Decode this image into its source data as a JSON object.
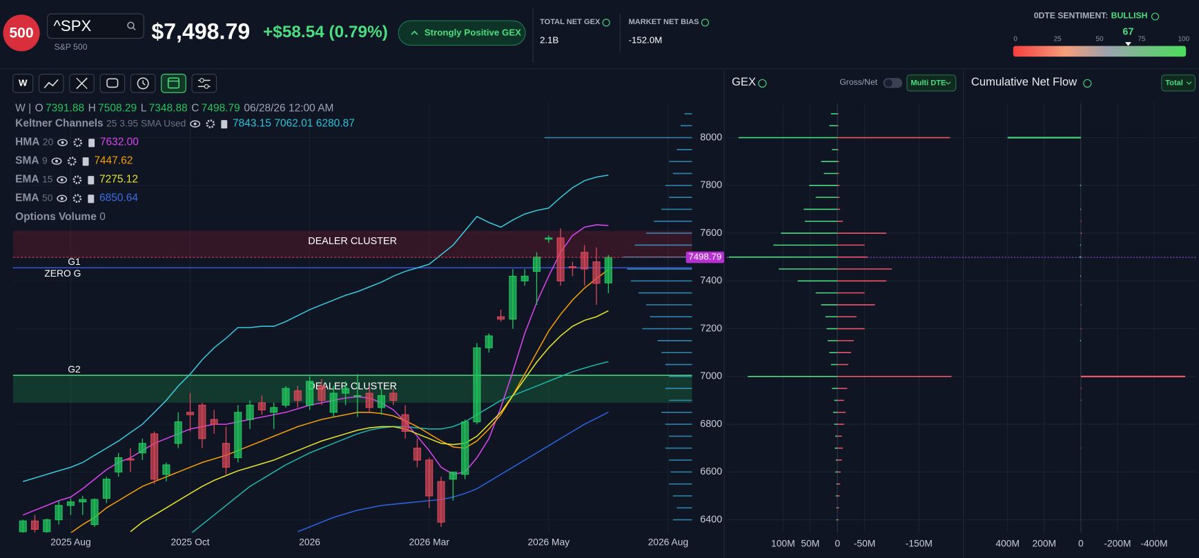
{
  "header": {
    "logo": "500",
    "ticker": "^SPX",
    "name": "S&P 500",
    "price": "$7,498.79",
    "change": "+$58.54 (0.79%)",
    "badge": "Strongly Positive GEX",
    "stats": [
      {
        "label": "TOTAL NET GEX",
        "value": "2.1B"
      },
      {
        "label": "MARKET NET BIAS",
        "value": "-152.0M"
      }
    ],
    "sentiment": {
      "label": "0DTE SENTIMENT:",
      "status": "BULLISH",
      "value": 67,
      "ticks": [
        0,
        25,
        50,
        75,
        100
      ]
    }
  },
  "toolbar": {
    "timeframe": "W"
  },
  "chart": {
    "type": "candlestick",
    "ohlc_prefix": "W |",
    "ohlc_labels": [
      "O",
      "H",
      "L",
      "C"
    ],
    "date": "06/28/26 12:00 AM",
    "indicators": [
      {
        "name": "Keltner Channels",
        "params": "25 3.95 SMA Used",
        "value_labels": [
          "7843.15",
          "7062.01",
          "6280.87"
        ],
        "color": "#2bc4d8"
      },
      {
        "name": "HMA",
        "params": "20",
        "value_labels": [
          "7632.00"
        ],
        "color": "#d946ef"
      },
      {
        "name": "SMA",
        "params": "9",
        "value_labels": [
          "7447.62"
        ],
        "color": "#f59e0b"
      },
      {
        "name": "EMA",
        "params": "15",
        "value_labels": [
          "7275.12"
        ],
        "color": "#e6e62e"
      },
      {
        "name": "EMA",
        "params": "50",
        "value_labels": [
          "6850.64"
        ],
        "color": "#3b6fe6"
      }
    ],
    "options_volume": {
      "name": "Options Volume",
      "value": 0
    },
    "candles": {
      "open": [
        6350,
        6395,
        6350,
        6400,
        6460,
        6475,
        6380,
        6490,
        6600,
        6655,
        6680,
        6760,
        6590,
        6720,
        6850,
        6880,
        6820,
        6720,
        6660,
        6820,
        6890,
        6850,
        6880,
        6940,
        6880,
        6960,
        6850,
        6930,
        6920,
        6930,
        6870,
        6930,
        6840,
        6700,
        6650,
        6560,
        6570,
        6590,
        6810,
        7120,
        7250,
        7240,
        7400,
        7440,
        7575,
        7580,
        7460,
        7520,
        7480,
        7391.88
      ],
      "high": [
        6400,
        6420,
        6405,
        6480,
        6490,
        6500,
        6490,
        6580,
        6680,
        6700,
        6740,
        6770,
        6640,
        6850,
        6930,
        6890,
        6860,
        6790,
        6880,
        6900,
        6920,
        6890,
        6960,
        6960,
        7000,
        6990,
        6960,
        6980,
        7010,
        6960,
        6950,
        6950,
        6880,
        6740,
        6660,
        6580,
        6600,
        6820,
        7140,
        7180,
        7280,
        7450,
        7450,
        7520,
        7590,
        7620,
        7480,
        7550,
        7540,
        7508.29
      ],
      "low": [
        6330,
        6340,
        6330,
        6380,
        6420,
        6420,
        6370,
        6470,
        6580,
        6600,
        6650,
        6550,
        6560,
        6700,
        6770,
        6700,
        6760,
        6590,
        6640,
        6780,
        6840,
        6780,
        6870,
        6870,
        6860,
        6880,
        6830,
        6880,
        6830,
        6850,
        6840,
        6880,
        6740,
        6620,
        6450,
        6370,
        6480,
        6570,
        6800,
        7100,
        7230,
        7200,
        7380,
        7300,
        7560,
        7380,
        7420,
        7380,
        7300,
        7348.88
      ],
      "close": [
        6395,
        6360,
        6400,
        6460,
        6475,
        6485,
        6485,
        6570,
        6660,
        6650,
        6720,
        6570,
        6630,
        6810,
        6840,
        6740,
        6800,
        6620,
        6850,
        6880,
        6860,
        6870,
        6950,
        6900,
        6980,
        6900,
        6930,
        6950,
        6920,
        6870,
        6920,
        6900,
        6770,
        6650,
        6500,
        6390,
        6600,
        6810,
        7120,
        7170,
        7240,
        7420,
        7420,
        7500,
        7580,
        7400,
        7455,
        7450,
        7390,
        7498.79
      ],
      "up_color": "#22c55e",
      "down_color": "#d9485a"
    },
    "lines": [
      {
        "color": "#3cc8dc",
        "values": [
          6560,
          6575,
          6590,
          6605,
          6620,
          6640,
          6670,
          6700,
          6730,
          6765,
          6800,
          6850,
          6900,
          6960,
          7010,
          7070,
          7120,
          7160,
          7205,
          7205,
          7210,
          7210,
          7230,
          7255,
          7280,
          7300,
          7320,
          7340,
          7355,
          7375,
          7395,
          7420,
          7440,
          7455,
          7470,
          7510,
          7550,
          7610,
          7670,
          7645,
          7625,
          7655,
          7680,
          7695,
          7705,
          7750,
          7790,
          7820,
          7835,
          7843.15
        ]
      },
      {
        "color": "#1fb5a8",
        "values": [
          null,
          null,
          null,
          null,
          null,
          null,
          null,
          null,
          null,
          null,
          null,
          null,
          null,
          null,
          6340,
          6380,
          6420,
          6460,
          6500,
          6540,
          6570,
          6600,
          6630,
          6655,
          6680,
          6700,
          6720,
          6740,
          6760,
          6775,
          6785,
          6790,
          6790,
          6785,
          6780,
          6780,
          6790,
          6810,
          6840,
          6870,
          6900,
          6920,
          6940,
          6960,
          6980,
          7000,
          7020,
          7035,
          7050,
          7062.01
        ]
      },
      {
        "color": "#d946ef",
        "values": [
          6420,
          6440,
          6460,
          6480,
          6495,
          6530,
          6570,
          6610,
          6640,
          6660,
          6690,
          6720,
          6740,
          6760,
          6780,
          6790,
          6800,
          6800,
          6810,
          6820,
          6830,
          6840,
          6850,
          6865,
          6880,
          6890,
          6900,
          6910,
          6915,
          6910,
          6890,
          6860,
          6810,
          6750,
          6690,
          6620,
          6590,
          6600,
          6660,
          6740,
          6870,
          7020,
          7180,
          7310,
          7420,
          7520,
          7590,
          7625,
          7635,
          7632
        ]
      },
      {
        "color": "#f59e0b",
        "values": [
          null,
          null,
          null,
          null,
          6345,
          6380,
          6410,
          6450,
          6480,
          6510,
          6540,
          6560,
          6580,
          6600,
          6620,
          6640,
          6655,
          6670,
          6690,
          6710,
          6730,
          6750,
          6770,
          6790,
          6805,
          6820,
          6830,
          6840,
          6850,
          6850,
          6845,
          6835,
          6815,
          6790,
          6760,
          6730,
          6705,
          6700,
          6730,
          6780,
          6840,
          6920,
          7010,
          7100,
          7190,
          7260,
          7320,
          7370,
          7410,
          7447.62
        ]
      },
      {
        "color": "#e6e62e",
        "values": [
          null,
          null,
          null,
          null,
          null,
          null,
          null,
          null,
          null,
          6350,
          6390,
          6420,
          6450,
          6480,
          6510,
          6540,
          6565,
          6585,
          6605,
          6620,
          6635,
          6650,
          6670,
          6690,
          6710,
          6730,
          6745,
          6760,
          6775,
          6785,
          6790,
          6790,
          6780,
          6760,
          6740,
          6720,
          6715,
          6720,
          6750,
          6800,
          6850,
          6920,
          6990,
          7060,
          7120,
          7170,
          7210,
          7235,
          7250,
          7275.12
        ]
      },
      {
        "color": "#2f62e0",
        "values": [
          null,
          null,
          null,
          null,
          null,
          null,
          null,
          null,
          null,
          null,
          null,
          null,
          null,
          null,
          null,
          null,
          null,
          null,
          null,
          null,
          null,
          null,
          null,
          6350,
          6370,
          6390,
          6410,
          6425,
          6440,
          6450,
          6460,
          6465,
          6470,
          6475,
          6480,
          6485,
          6495,
          6510,
          6530,
          6560,
          6590,
          6620,
          6650,
          6680,
          6710,
          6740,
          6770,
          6800,
          6825,
          6850.64
        ]
      }
    ],
    "xlim": [
      -0.83,
      56
    ],
    "xticks": [
      {
        "value": 4,
        "label": "2025 Aug"
      },
      {
        "value": 14,
        "label": "2025 Oct"
      },
      {
        "value": 24,
        "label": "2026"
      },
      {
        "value": 34,
        "label": "2026 Mar"
      },
      {
        "value": 44,
        "label": "2026 May"
      },
      {
        "value": 54,
        "label": "2026 Aug"
      }
    ],
    "ylim": [
      6346,
      8144
    ],
    "yticks": [
      6400,
      6600,
      6800,
      7000,
      7200,
      7400,
      7600,
      7800,
      8000
    ],
    "last_price": 7498.79,
    "last_price_label": "7498.79",
    "zones": [
      {
        "label": "DEALER CLUSTER",
        "from": 7500,
        "to": 7610,
        "color": "#8b1e32"
      },
      {
        "label": "DEALER CLUSTER",
        "from": 6890,
        "to": 7005,
        "color": "#1f8a4a"
      }
    ],
    "levels": [
      {
        "labels": [
          "G1",
          "ZERO G"
        ],
        "value": 7455,
        "color": "#3b55d9"
      },
      {
        "labels": [
          "G2"
        ],
        "value": 7005,
        "color": "#4ade80"
      }
    ],
    "volume_profile": {
      "color": "#3aa7d8",
      "prices": [
        6400,
        6450,
        6500,
        6550,
        6600,
        6650,
        6700,
        6750,
        6800,
        6850,
        6900,
        6950,
        7000,
        7050,
        7100,
        7150,
        7200,
        7250,
        7300,
        7350,
        7400,
        7450,
        7500,
        7550,
        7600,
        7650,
        7700,
        7750,
        7800,
        7850,
        7900,
        7950,
        8000,
        8050,
        8100
      ],
      "values": [
        25,
        20,
        25,
        30,
        28,
        30,
        35,
        30,
        35,
        40,
        30,
        35,
        30,
        35,
        40,
        45,
        65,
        55,
        60,
        70,
        80,
        85,
        90,
        75,
        60,
        50,
        40,
        30,
        35,
        25,
        30,
        20,
        193,
        15,
        10
      ]
    }
  },
  "gex": {
    "title": "GEX",
    "toggle_label": "Gross/Net",
    "dropdown": "Multi DTE",
    "strikes": [
      6400,
      6450,
      6500,
      6550,
      6600,
      6650,
      6700,
      6750,
      6800,
      6850,
      6900,
      6950,
      7000,
      7050,
      7100,
      7150,
      7200,
      7250,
      7300,
      7350,
      7400,
      7450,
      7500,
      7550,
      7600,
      7650,
      7700,
      7750,
      7800,
      7850,
      7900,
      7950,
      8000,
      8050,
      8100
    ],
    "series": [
      {
        "color": "#4ade80",
        "values": [
          2,
          2,
          3,
          2,
          4,
          3,
          5,
          4,
          6,
          8,
          6,
          10,
          165,
          12,
          15,
          18,
          20,
          22,
          30,
          40,
          73,
          108,
          200,
          118,
          104,
          60,
          62,
          40,
          52,
          25,
          30,
          10,
          182,
          15,
          12
        ]
      },
      {
        "color": "#f0566a",
        "values": [
          -2,
          -3,
          -4,
          -5,
          -6,
          -8,
          -10,
          -8,
          -12,
          -15,
          -12,
          -18,
          -210,
          -20,
          -25,
          -30,
          -50,
          -35,
          -69,
          -50,
          -90,
          -100,
          -55,
          -50,
          -90,
          -10,
          -5,
          -4,
          -4,
          -3,
          -3,
          -2,
          -207,
          -2,
          -2
        ]
      }
    ],
    "xlim": [
      200,
      -215
    ],
    "xticks": [
      {
        "value": 100,
        "label": "100M"
      },
      {
        "value": 50,
        "label": "50M"
      },
      0,
      {
        "value": -50,
        "label": "-50M"
      },
      {
        "value": -150,
        "label": "-150M"
      }
    ]
  },
  "flow": {
    "title": "Cumulative Net Flow",
    "dropdown": "Total",
    "strikes": [
      8000,
      7800,
      7700,
      7650,
      7600,
      7550,
      7500,
      7420,
      7300,
      7200,
      7150,
      7000,
      6950,
      6900,
      6700
    ],
    "values": [
      400,
      4,
      3,
      -3,
      -4,
      4,
      6,
      3,
      -3,
      -3,
      4,
      -570,
      -3,
      -3,
      -2
    ],
    "positive_color": "#4ade80",
    "negative_color": "#f0566a",
    "xlim": [
      620,
      -620
    ],
    "xticks": [
      {
        "value": 400,
        "label": "400M"
      },
      {
        "value": 200,
        "label": "200M"
      },
      0,
      {
        "value": -200,
        "label": "-200M"
      },
      {
        "value": -400,
        "label": "-400M"
      }
    ]
  }
}
